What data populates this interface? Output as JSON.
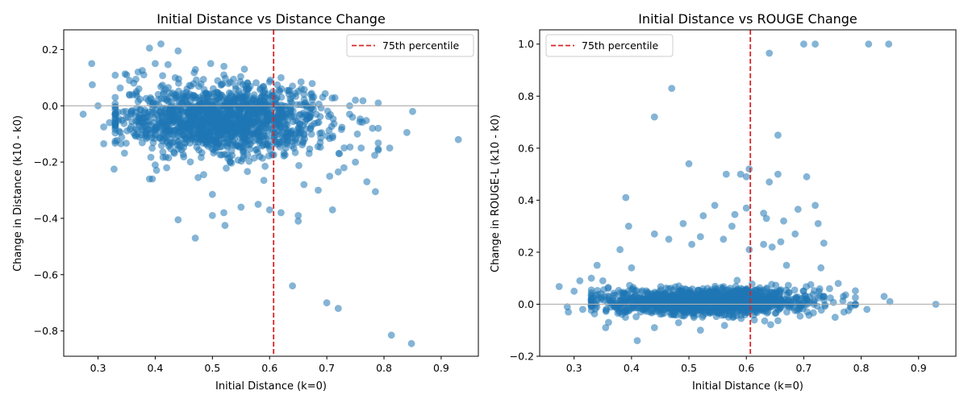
{
  "chart_data": [
    {
      "type": "scatter",
      "title": "Initial Distance vs Distance Change",
      "xlabel": "Initial Distance (k=0)",
      "ylabel": "Change in Distance (k10 - k0)",
      "xlim": [
        0.24,
        0.965
      ],
      "ylim": [
        -0.89,
        0.27
      ],
      "xticks": [
        "0.3",
        "0.4",
        "0.5",
        "0.6",
        "0.7",
        "0.8",
        "0.9"
      ],
      "yticks": [
        "-0.8",
        "-0.6",
        "-0.4",
        "-0.2",
        "0.0",
        "0.2"
      ],
      "reference_line_y": 0.0,
      "percentile_line": {
        "label": "75th percentile",
        "x": 0.607
      },
      "legend_position": "upper right",
      "point_color": "#1f77b4",
      "line_color": "#d62728",
      "cluster": {
        "x_center": 0.52,
        "x_spread": 0.1,
        "y_center": -0.05,
        "y_spread": 0.06,
        "count": 1500
      },
      "points": [
        [
          0.274,
          -0.03
        ],
        [
          0.289,
          0.15
        ],
        [
          0.29,
          0.075
        ],
        [
          0.3,
          0.0
        ],
        [
          0.31,
          -0.135
        ],
        [
          0.31,
          -0.075
        ],
        [
          0.32,
          -0.06
        ],
        [
          0.328,
          -0.225
        ],
        [
          0.34,
          -0.135
        ],
        [
          0.35,
          0.11
        ],
        [
          0.355,
          0.09
        ],
        [
          0.37,
          0.12
        ],
        [
          0.38,
          0.11
        ],
        [
          0.39,
          0.205
        ],
        [
          0.41,
          0.22
        ],
        [
          0.44,
          0.195
        ],
        [
          0.4,
          0.15
        ],
        [
          0.435,
          0.1
        ],
        [
          0.497,
          0.15
        ],
        [
          0.52,
          0.11
        ],
        [
          0.39,
          -0.26
        ],
        [
          0.395,
          -0.26
        ],
        [
          0.4,
          -0.21
        ],
        [
          0.42,
          -0.22
        ],
        [
          0.44,
          -0.405
        ],
        [
          0.47,
          -0.47
        ],
        [
          0.475,
          -0.255
        ],
        [
          0.5,
          -0.39
        ],
        [
          0.5,
          -0.315
        ],
        [
          0.52,
          -0.38
        ],
        [
          0.522,
          -0.425
        ],
        [
          0.55,
          -0.36
        ],
        [
          0.58,
          -0.35
        ],
        [
          0.59,
          -0.265
        ],
        [
          0.6,
          -0.37
        ],
        [
          0.62,
          -0.38
        ],
        [
          0.64,
          -0.64
        ],
        [
          0.65,
          -0.39
        ],
        [
          0.65,
          -0.41
        ],
        [
          0.66,
          -0.28
        ],
        [
          0.685,
          -0.3
        ],
        [
          0.7,
          -0.7
        ],
        [
          0.71,
          -0.37
        ],
        [
          0.72,
          -0.72
        ],
        [
          0.705,
          -0.25
        ],
        [
          0.72,
          -0.235
        ],
        [
          0.73,
          -0.22
        ],
        [
          0.75,
          -0.2
        ],
        [
          0.76,
          -0.15
        ],
        [
          0.77,
          -0.27
        ],
        [
          0.78,
          -0.08
        ],
        [
          0.785,
          -0.305
        ],
        [
          0.79,
          0.01
        ],
        [
          0.79,
          -0.08
        ],
        [
          0.81,
          -0.15
        ],
        [
          0.813,
          -0.815
        ],
        [
          0.84,
          -0.095
        ],
        [
          0.848,
          -0.845
        ],
        [
          0.85,
          -0.02
        ],
        [
          0.93,
          -0.12
        ],
        [
          0.75,
          0.02
        ],
        [
          0.74,
          0.0
        ],
        [
          0.62,
          0.1
        ],
        [
          0.64,
          0.07
        ],
        [
          0.655,
          0.085
        ],
        [
          0.6,
          0.085
        ]
      ]
    },
    {
      "type": "scatter",
      "title": "Initial Distance vs ROUGE Change",
      "xlabel": "Initial Distance (k=0)",
      "ylabel": "Change in ROUGE-L (k10 - k0)",
      "xlim": [
        0.24,
        0.965
      ],
      "ylim": [
        -0.2,
        1.055
      ],
      "xticks": [
        "0.3",
        "0.4",
        "0.5",
        "0.6",
        "0.7",
        "0.8",
        "0.9"
      ],
      "yticks": [
        "-0.2",
        "0.0",
        "0.2",
        "0.4",
        "0.6",
        "0.8",
        "1.0"
      ],
      "reference_line_y": 0.0,
      "percentile_line": {
        "label": "75th percentile",
        "x": 0.607
      },
      "legend_position": "upper left",
      "point_color": "#1f77b4",
      "line_color": "#d62728",
      "cluster": {
        "x_center": 0.53,
        "x_spread": 0.1,
        "y_center": 0.01,
        "y_spread": 0.025,
        "count": 1500
      },
      "points": [
        [
          0.274,
          0.068
        ],
        [
          0.288,
          -0.01
        ],
        [
          0.29,
          -0.03
        ],
        [
          0.3,
          0.05
        ],
        [
          0.31,
          0.09
        ],
        [
          0.315,
          -0.02
        ],
        [
          0.33,
          0.1
        ],
        [
          0.34,
          0.15
        ],
        [
          0.35,
          0.09
        ],
        [
          0.355,
          -0.09
        ],
        [
          0.36,
          -0.07
        ],
        [
          0.38,
          0.21
        ],
        [
          0.39,
          0.41
        ],
        [
          0.395,
          0.3
        ],
        [
          0.4,
          0.14
        ],
        [
          0.41,
          -0.14
        ],
        [
          0.44,
          0.72
        ],
        [
          0.44,
          0.27
        ],
        [
          0.44,
          -0.09
        ],
        [
          0.47,
          0.83
        ],
        [
          0.465,
          0.25
        ],
        [
          0.49,
          0.31
        ],
        [
          0.5,
          0.54
        ],
        [
          0.505,
          0.23
        ],
        [
          0.52,
          0.26
        ],
        [
          0.525,
          0.34
        ],
        [
          0.52,
          -0.1
        ],
        [
          0.545,
          0.38
        ],
        [
          0.56,
          0.25
        ],
        [
          0.565,
          0.5
        ],
        [
          0.575,
          0.3
        ],
        [
          0.58,
          0.345
        ],
        [
          0.59,
          0.5
        ],
        [
          0.6,
          0.49
        ],
        [
          0.605,
          0.52
        ],
        [
          0.6,
          0.37
        ],
        [
          0.605,
          0.21
        ],
        [
          0.64,
          0.47
        ],
        [
          0.64,
          0.965
        ],
        [
          0.655,
          0.65
        ],
        [
          0.655,
          0.5
        ],
        [
          0.63,
          0.35
        ],
        [
          0.635,
          0.33
        ],
        [
          0.63,
          0.23
        ],
        [
          0.645,
          0.22
        ],
        [
          0.66,
          0.24
        ],
        [
          0.665,
          0.32
        ],
        [
          0.67,
          0.15
        ],
        [
          0.685,
          0.27
        ],
        [
          0.69,
          0.365
        ],
        [
          0.7,
          1.0
        ],
        [
          0.72,
          1.0
        ],
        [
          0.705,
          0.49
        ],
        [
          0.72,
          0.38
        ],
        [
          0.725,
          0.31
        ],
        [
          0.735,
          0.235
        ],
        [
          0.73,
          0.14
        ],
        [
          0.745,
          0.06
        ],
        [
          0.76,
          0.08
        ],
        [
          0.77,
          -0.03
        ],
        [
          0.79,
          0.0
        ],
        [
          0.81,
          -0.02
        ],
        [
          0.813,
          1.0
        ],
        [
          0.84,
          0.03
        ],
        [
          0.848,
          1.0
        ],
        [
          0.85,
          0.01
        ],
        [
          0.93,
          0.0
        ]
      ]
    }
  ]
}
